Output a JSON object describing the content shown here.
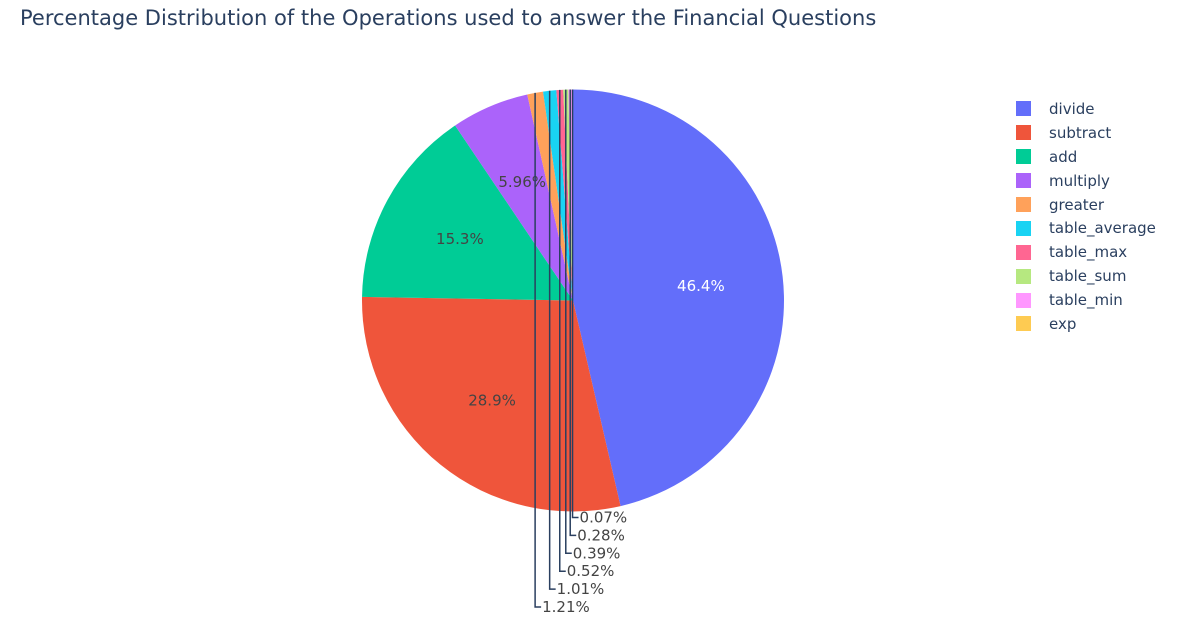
{
  "chart_data": {
    "type": "pie",
    "title": "Percentage Distribution of the Operations used to answer the Financial Questions",
    "legend_position": "right",
    "slices": [
      {
        "name": "divide",
        "value": 46.4,
        "label": "46.4%",
        "color": "#636efa",
        "label_color": "#ffffff"
      },
      {
        "name": "subtract",
        "value": 28.9,
        "label": "28.9%",
        "color": "#ef553b",
        "label_color": "#444444"
      },
      {
        "name": "add",
        "value": 15.3,
        "label": "15.3%",
        "color": "#00cc96",
        "label_color": "#444444"
      },
      {
        "name": "multiply",
        "value": 5.96,
        "label": "5.96%",
        "color": "#ab63fa",
        "label_color": "#444444"
      },
      {
        "name": "greater",
        "value": 1.21,
        "label": "1.21%",
        "color": "#ffa15a",
        "label_color": "#444444"
      },
      {
        "name": "table_average",
        "value": 1.01,
        "label": "1.01%",
        "color": "#19d3f3",
        "label_color": "#444444"
      },
      {
        "name": "table_max",
        "value": 0.52,
        "label": "0.52%",
        "color": "#ff6692",
        "label_color": "#444444"
      },
      {
        "name": "table_sum",
        "value": 0.39,
        "label": "0.39%",
        "color": "#b6e880",
        "label_color": "#444444"
      },
      {
        "name": "table_min",
        "value": 0.28,
        "label": "0.28%",
        "color": "#ff97ff",
        "label_color": "#444444"
      },
      {
        "name": "exp",
        "value": 0.07,
        "label": "0.07%",
        "color": "#fecb52",
        "label_color": "#444444"
      }
    ]
  }
}
